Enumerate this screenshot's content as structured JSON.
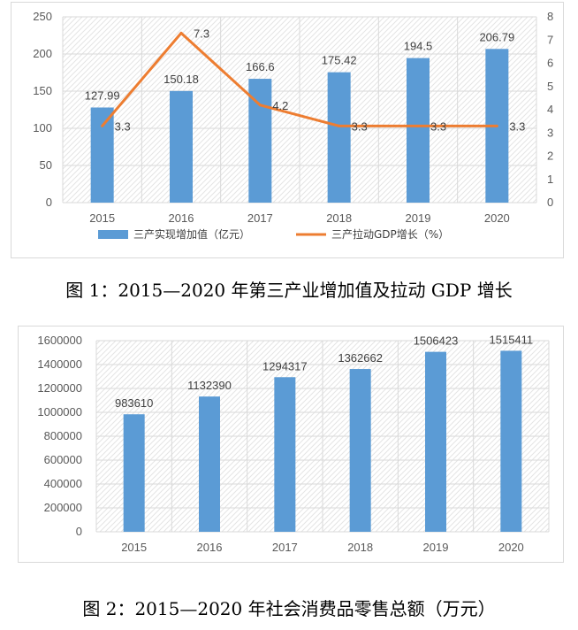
{
  "colors": {
    "bar": "#5b9bd5",
    "line": "#ed7d31",
    "grid": "#d9d9d9",
    "hatch": "#e4e4e4"
  },
  "figure1": {
    "caption": "图 1：2015—2020 年第三产业增加值及拉动 GDP 增长",
    "legend": {
      "bar": "三产实现增加值（亿元）",
      "line": "三产拉动GDP增长（%）"
    }
  },
  "figure2": {
    "caption": "图 2：2015—2020 年社会消费品零售总额（万元）"
  },
  "chart_data": [
    {
      "type": "bar",
      "categories": [
        "2015",
        "2016",
        "2017",
        "2018",
        "2019",
        "2020"
      ],
      "series": [
        {
          "name": "三产实现增加值（亿元）",
          "type": "bar",
          "axis": "left",
          "values": [
            127.99,
            150.18,
            166.6,
            175.42,
            194.5,
            206.79
          ],
          "labels": [
            "127.99",
            "150.18",
            "166.6",
            "175.42",
            "194.5",
            "206.79"
          ]
        },
        {
          "name": "三产拉动GDP增长（%）",
          "type": "line",
          "axis": "right",
          "values": [
            3.3,
            7.3,
            4.2,
            3.3,
            3.3,
            3.3
          ],
          "labels": [
            "3.3",
            "7.3",
            "4.2",
            "3.3",
            "3.3",
            "3.3"
          ]
        }
      ],
      "ylim": [
        0,
        250
      ],
      "yticks": [
        "0",
        "50",
        "100",
        "150",
        "200",
        "250"
      ],
      "y2lim": [
        0,
        8
      ],
      "y2ticks": [
        "0",
        "1",
        "2",
        "3",
        "4",
        "5",
        "6",
        "7",
        "8"
      ],
      "grid": true,
      "legend_position": "bottom"
    },
    {
      "type": "bar",
      "categories": [
        "2015",
        "2016",
        "2017",
        "2018",
        "2019",
        "2020"
      ],
      "values": [
        983610,
        1132390,
        1294317,
        1362662,
        1506423,
        1515411
      ],
      "labels": [
        "983610",
        "1132390",
        "1294317",
        "1362662",
        "1506423",
        "1515411"
      ],
      "ylim": [
        0,
        1600000
      ],
      "yticks": [
        "0",
        "200000",
        "400000",
        "600000",
        "800000",
        "1000000",
        "1200000",
        "1400000",
        "1600000"
      ],
      "grid": true
    }
  ]
}
